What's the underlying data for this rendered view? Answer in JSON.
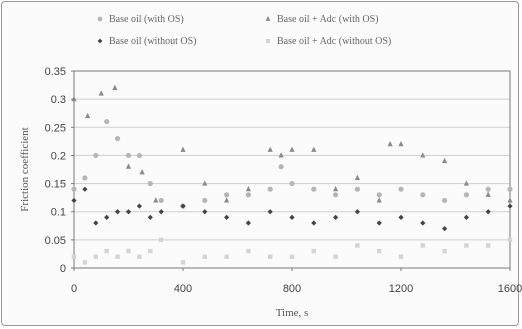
{
  "chart_data": {
    "type": "scatter",
    "xlabel": "Time, s",
    "ylabel": "Friction coefficient",
    "xlim": [
      0,
      1600
    ],
    "ylim": [
      0,
      0.35
    ],
    "xticks": [
      "0",
      "400",
      "800",
      "1200",
      "1600"
    ],
    "yticks": [
      "0",
      "0.05",
      "0.1",
      "0.15",
      "0.2",
      "0.25",
      "0.3",
      "0.35"
    ],
    "grid": "horizontal",
    "legend_position": "top",
    "series": [
      {
        "name": "Base oil (with OS)",
        "marker": "circle",
        "color": "#b5b5b5",
        "x": [
          0,
          40,
          80,
          120,
          160,
          200,
          240,
          280,
          320,
          400,
          480,
          560,
          640,
          720,
          760,
          800,
          880,
          960,
          1040,
          1120,
          1200,
          1280,
          1360,
          1440,
          1520,
          1600
        ],
        "y": [
          0.14,
          0.16,
          0.2,
          0.26,
          0.23,
          0.2,
          0.2,
          0.15,
          0.12,
          0.11,
          0.12,
          0.13,
          0.13,
          0.14,
          0.18,
          0.15,
          0.14,
          0.13,
          0.14,
          0.13,
          0.14,
          0.13,
          0.12,
          0.13,
          0.14,
          0.14
        ]
      },
      {
        "name": "Base oil + Adc (with OS)",
        "marker": "triangle",
        "color": "#8a8a8a",
        "x": [
          0,
          50,
          100,
          150,
          200,
          250,
          300,
          400,
          480,
          560,
          640,
          720,
          760,
          800,
          880,
          960,
          1040,
          1120,
          1160,
          1200,
          1280,
          1360,
          1440,
          1520,
          1600
        ],
        "y": [
          0.3,
          0.27,
          0.31,
          0.32,
          0.18,
          0.17,
          0.12,
          0.21,
          0.15,
          0.12,
          0.14,
          0.21,
          0.2,
          0.21,
          0.21,
          0.14,
          0.16,
          0.12,
          0.22,
          0.22,
          0.2,
          0.19,
          0.15,
          0.13,
          0.12
        ]
      },
      {
        "name": "Base oil (without OS)",
        "marker": "diamond",
        "color": "#444444",
        "x": [
          0,
          40,
          80,
          120,
          160,
          200,
          240,
          280,
          320,
          400,
          480,
          560,
          640,
          720,
          800,
          880,
          960,
          1040,
          1120,
          1200,
          1280,
          1360,
          1440,
          1520,
          1600
        ],
        "y": [
          0.12,
          0.14,
          0.08,
          0.09,
          0.1,
          0.1,
          0.11,
          0.09,
          0.1,
          0.11,
          0.1,
          0.09,
          0.08,
          0.1,
          0.09,
          0.08,
          0.09,
          0.1,
          0.08,
          0.09,
          0.08,
          0.07,
          0.09,
          0.1,
          0.11
        ]
      },
      {
        "name": "Base oil + Adc (without OS)",
        "marker": "square",
        "color": "#d4d4d4",
        "x": [
          0,
          40,
          80,
          120,
          160,
          200,
          240,
          280,
          320,
          400,
          480,
          560,
          640,
          720,
          800,
          880,
          960,
          1040,
          1120,
          1200,
          1280,
          1360,
          1440,
          1520,
          1600
        ],
        "y": [
          0.02,
          0.01,
          0.02,
          0.03,
          0.02,
          0.03,
          0.02,
          0.03,
          0.05,
          0.01,
          0.02,
          0.02,
          0.03,
          0.02,
          0.02,
          0.03,
          0.02,
          0.04,
          0.03,
          0.02,
          0.04,
          0.03,
          0.04,
          0.04,
          0.05
        ]
      }
    ]
  }
}
